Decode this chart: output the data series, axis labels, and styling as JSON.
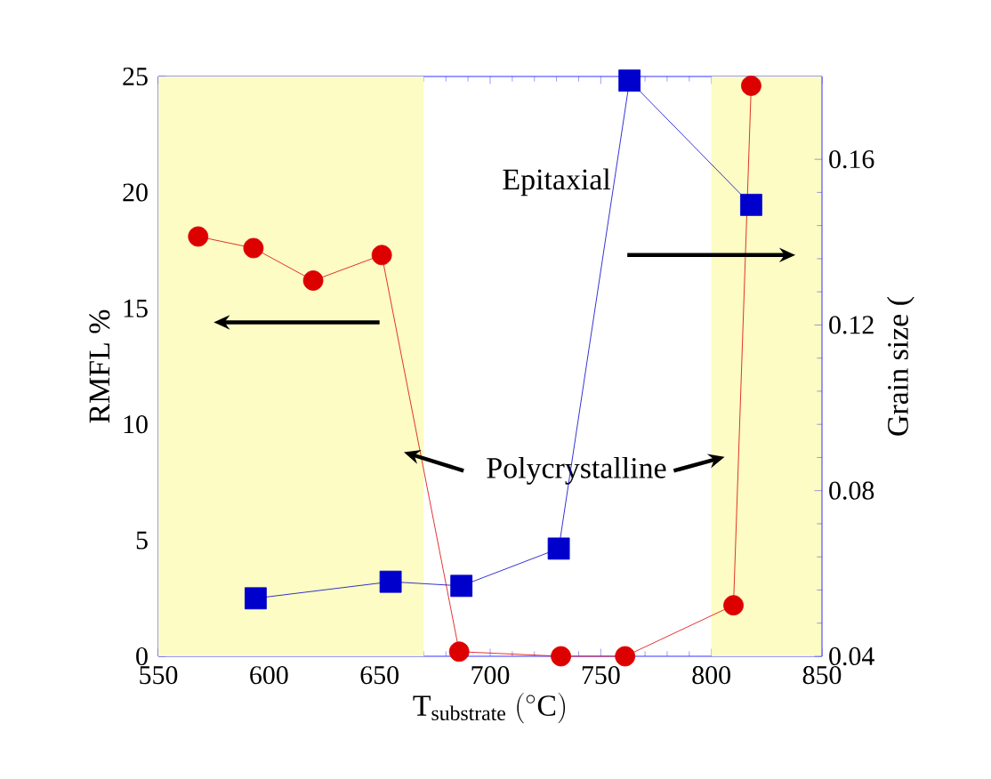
{
  "chart_data": {
    "type": "line",
    "xlabel": "\\mathrm{T}_{\\mathrm{substrate}}\\ (^{\\circ}\\mathrm{C})",
    "ylabel": "RMFL %",
    "y2label": "Grain size (",
    "xlim": [
      550,
      850
    ],
    "xticks": [
      550,
      600,
      650,
      700,
      750,
      800,
      850
    ],
    "ylim": [
      0,
      25
    ],
    "yticks": [
      0,
      5,
      10,
      15,
      20,
      25
    ],
    "y2lim": [
      0.04,
      0.18
    ],
    "y2ticks": [
      0.04,
      0.08,
      0.12,
      0.16
    ],
    "series": [
      {
        "color": "#dd0000",
        "marker": "circle",
        "x": [
          568,
          593,
          620,
          651,
          686,
          732,
          761,
          810,
          818
        ],
        "values": [
          18.1,
          17.6,
          16.2,
          17.3,
          0.2,
          0.0,
          0.0,
          2.2,
          24.6
        ]
      },
      {
        "color": "#0000cc",
        "marker": "square",
        "axis": "y2",
        "x": [
          594,
          655,
          687,
          731,
          763,
          818
        ],
        "values": [
          0.054,
          0.058,
          0.057,
          0.066,
          0.179,
          0.149
        ]
      }
    ],
    "bands": [
      {
        "axis": "x",
        "from": 550,
        "to": 670,
        "color": "#fcfcc4"
      },
      {
        "axis": "x",
        "from": 800,
        "to": 850,
        "color": "#fcfcc4"
      }
    ],
    "annotations": [
      "Epitaxial",
      "Polycrystalline"
    ]
  }
}
